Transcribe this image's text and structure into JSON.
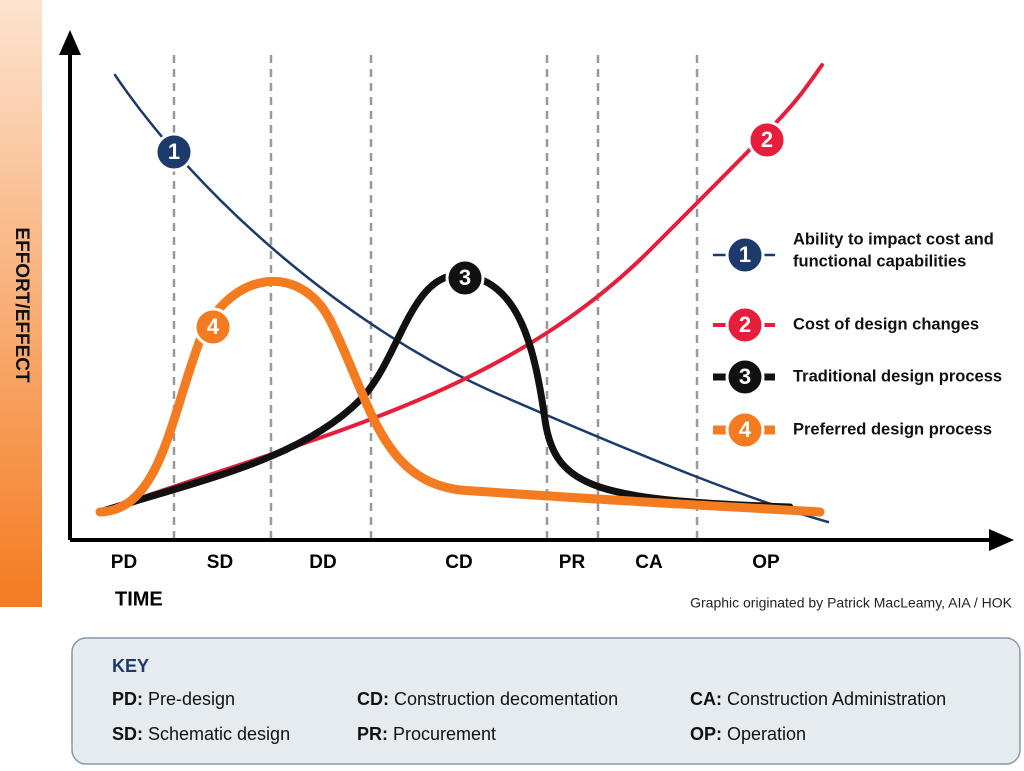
{
  "y_axis_label": "EFFORT/EFFECT",
  "x_axis_label": "TIME",
  "phases": [
    "PD",
    "SD",
    "DD",
    "CD",
    "PR",
    "CA",
    "OP"
  ],
  "credit": "Graphic originated by Patrick MacLeamy, AIA / HOK",
  "curves": [
    {
      "number": "1",
      "label_lines": [
        "Ability to impact cost and",
        "functional capabilities"
      ],
      "color": "#1d3a6c"
    },
    {
      "number": "2",
      "label_lines": [
        "Cost of design changes"
      ],
      "color": "#e61e3c"
    },
    {
      "number": "3",
      "label_lines": [
        "Traditional design process"
      ],
      "color": "#111111"
    },
    {
      "number": "4",
      "label_lines": [
        "Preferred design process"
      ],
      "color": "#f47b20"
    }
  ],
  "key": {
    "title": "KEY",
    "items": [
      {
        "abbr": "PD:",
        "text": "Pre-design"
      },
      {
        "abbr": "SD:",
        "text": "Schematic design"
      },
      {
        "abbr": "CD:",
        "text": "Construction decomentation"
      },
      {
        "abbr": "PR:",
        "text": "Procurement"
      },
      {
        "abbr": "CA:",
        "text": "Construction Administration"
      },
      {
        "abbr": "OP:",
        "text": "Operation"
      }
    ]
  }
}
